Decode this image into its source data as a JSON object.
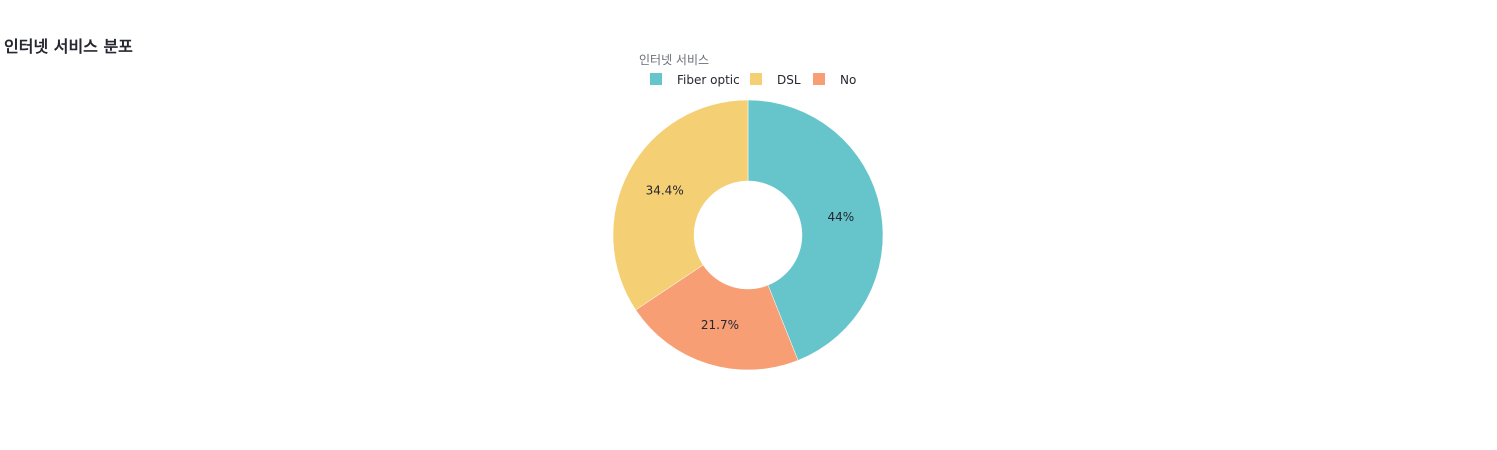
{
  "chart_data": {
    "type": "pie",
    "title": "인터넷 서비스 분포",
    "legend_title": "인터넷 서비스",
    "legend_position": "top-center",
    "hole": true,
    "start": "top",
    "direction": "clockwise",
    "categories": [
      "Fiber optic",
      "No",
      "DSL"
    ],
    "values": [
      44.0,
      21.7,
      34.4
    ],
    "labels": [
      "44%",
      "21.7%",
      "34.4%"
    ],
    "colors": [
      "#66c4cb",
      "#f89e74",
      "#f5cf73"
    ],
    "legend_order": [
      0,
      2,
      1
    ]
  }
}
